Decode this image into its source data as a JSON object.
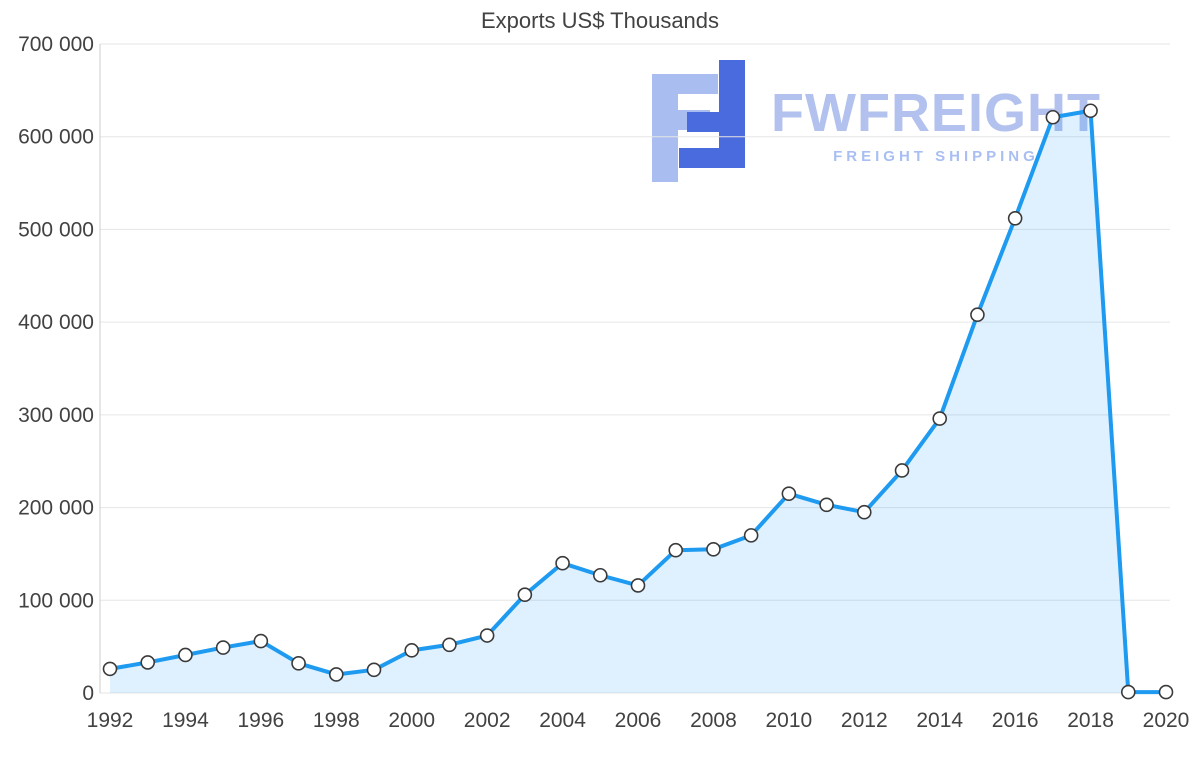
{
  "title": "Exports US$ Thousands",
  "watermark": {
    "name": "FWFREIGHT",
    "tagline": "FREIGHT SHIPPING"
  },
  "chart_data": {
    "type": "area",
    "title": "Exports US$ Thousands",
    "x": [
      1992,
      1993,
      1994,
      1995,
      1996,
      1997,
      1998,
      1999,
      2000,
      2001,
      2002,
      2003,
      2004,
      2005,
      2006,
      2007,
      2008,
      2009,
      2010,
      2011,
      2012,
      2013,
      2014,
      2015,
      2016,
      2017,
      2018,
      2019,
      2020
    ],
    "values": [
      26000,
      33000,
      41000,
      49000,
      56000,
      32000,
      20000,
      25000,
      46000,
      52000,
      62000,
      106000,
      140000,
      127000,
      116000,
      154000,
      155000,
      170000,
      215000,
      203000,
      195000,
      240000,
      296000,
      408000,
      512000,
      621000,
      628000,
      1000,
      1000
    ],
    "ylim": [
      0,
      700000
    ],
    "yticks": [
      {
        "value": 0,
        "label": "0"
      },
      {
        "value": 100000,
        "label": "100 000"
      },
      {
        "value": 200000,
        "label": "200 000"
      },
      {
        "value": 300000,
        "label": "300 000"
      },
      {
        "value": 400000,
        "label": "400 000"
      },
      {
        "value": 500000,
        "label": "500 000"
      },
      {
        "value": 600000,
        "label": "600 000"
      },
      {
        "value": 700000,
        "label": "700 000"
      }
    ],
    "xticks": [
      1992,
      1994,
      1996,
      1998,
      2000,
      2002,
      2004,
      2006,
      2008,
      2010,
      2012,
      2014,
      2016,
      2018,
      2020
    ],
    "grid": "horizontal",
    "legend": "none",
    "colors": {
      "line": "#1e9bf0",
      "fill": "#1b9af7",
      "fill_opacity": "0.14",
      "marker_fill": "#ffffff",
      "marker_stroke": "#3a3a3a",
      "grid": "#e6e6e6",
      "axis_line": "#cccccc",
      "axis_text": "#424242"
    }
  }
}
